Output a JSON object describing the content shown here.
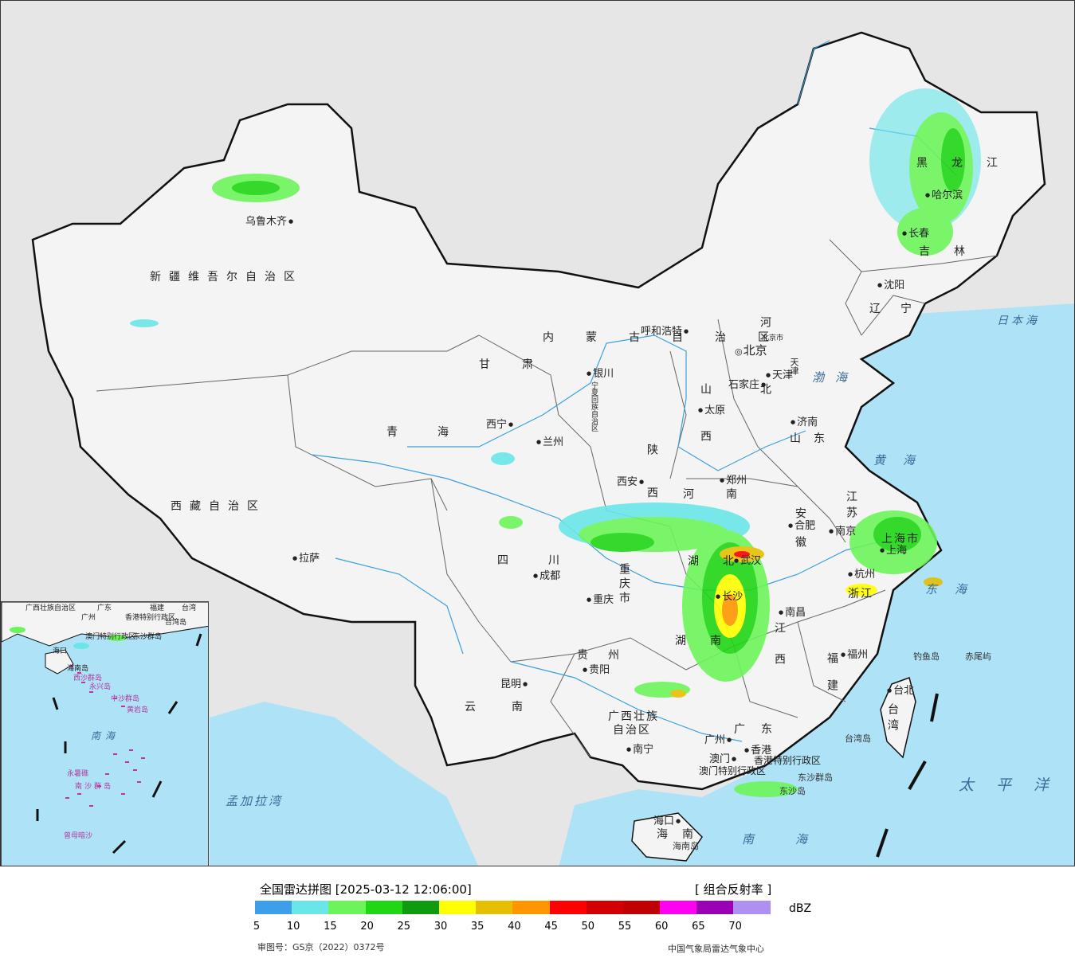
{
  "map": {
    "provinces": [
      {
        "name": "新疆维吾尔自治区"
      },
      {
        "name": "西藏自治区"
      },
      {
        "name": "青海"
      },
      {
        "name": "甘肃"
      },
      {
        "name": "四川"
      },
      {
        "name": "云南"
      },
      {
        "name": "贵州"
      },
      {
        "name": "广西壮族"
      },
      {
        "name": "自治区"
      },
      {
        "name": "广东"
      },
      {
        "name": "湖南"
      },
      {
        "name": "湖北"
      },
      {
        "name": "江西"
      },
      {
        "name": "福建"
      },
      {
        "name": "浙江"
      },
      {
        "name": "江苏"
      },
      {
        "name": "安徽"
      },
      {
        "name": "河南"
      },
      {
        "name": "山东"
      },
      {
        "name": "河北"
      },
      {
        "name": "山西"
      },
      {
        "name": "陕西"
      },
      {
        "name": "宁夏回族自治区"
      },
      {
        "name": "内蒙古自治区"
      },
      {
        "name": "黑龙江"
      },
      {
        "name": "吉林"
      },
      {
        "name": "辽宁"
      },
      {
        "name": "台湾"
      },
      {
        "name": "海南"
      },
      {
        "name": "重庆市"
      },
      {
        "name": "上海市"
      },
      {
        "name": "天津"
      },
      {
        "name": "北京市"
      }
    ],
    "cities": [
      {
        "name": "乌鲁木齐"
      },
      {
        "name": "拉萨"
      },
      {
        "name": "西宁"
      },
      {
        "name": "兰州"
      },
      {
        "name": "银川"
      },
      {
        "name": "呼和浩特"
      },
      {
        "name": "北京"
      },
      {
        "name": "天津"
      },
      {
        "name": "石家庄"
      },
      {
        "name": "太原"
      },
      {
        "name": "济南"
      },
      {
        "name": "郑州"
      },
      {
        "name": "西安"
      },
      {
        "name": "成都"
      },
      {
        "name": "重庆"
      },
      {
        "name": "武汉"
      },
      {
        "name": "合肥"
      },
      {
        "name": "南京"
      },
      {
        "name": "上海"
      },
      {
        "name": "杭州"
      },
      {
        "name": "南昌"
      },
      {
        "name": "长沙"
      },
      {
        "name": "福州"
      },
      {
        "name": "台北"
      },
      {
        "name": "贵阳"
      },
      {
        "name": "昆明"
      },
      {
        "name": "南宁"
      },
      {
        "name": "广州"
      },
      {
        "name": "澳门"
      },
      {
        "name": "香港"
      },
      {
        "name": "海口"
      },
      {
        "name": "沈阳"
      },
      {
        "name": "长春"
      },
      {
        "name": "哈尔滨"
      }
    ],
    "seas": [
      {
        "name": "日本海"
      },
      {
        "name": "渤海"
      },
      {
        "name": "黄海"
      },
      {
        "name": "东海"
      },
      {
        "name": "太平洋"
      },
      {
        "name": "南海"
      },
      {
        "name": "孟加拉湾"
      }
    ],
    "islands": [
      {
        "name": "钓鱼岛"
      },
      {
        "name": "赤尾屿"
      },
      {
        "name": "台湾岛"
      },
      {
        "name": "东沙群岛"
      },
      {
        "name": "东沙岛"
      },
      {
        "name": "海南岛"
      }
    ],
    "special_regions": [
      {
        "name": "香港特别行政区"
      },
      {
        "name": "澳门特别行政区"
      }
    ]
  },
  "inset": {
    "labels": [
      {
        "name": "广西壮族自治区"
      },
      {
        "name": "广东"
      },
      {
        "name": "福建"
      },
      {
        "name": "台湾"
      },
      {
        "name": "广州"
      },
      {
        "name": "香港特别行政区"
      },
      {
        "name": "澳门特别行政区"
      },
      {
        "name": "东沙群岛"
      },
      {
        "name": "台湾岛"
      },
      {
        "name": "海口"
      },
      {
        "name": "海南岛"
      },
      {
        "name": "西沙群岛"
      },
      {
        "name": "永兴岛"
      },
      {
        "name": "中沙群岛"
      },
      {
        "name": "黄岩岛"
      },
      {
        "name": "南海"
      },
      {
        "name": "永暑礁"
      },
      {
        "name": "南沙群岛"
      },
      {
        "name": "曾母暗沙"
      }
    ]
  },
  "legend": {
    "title": "全国雷达拼图 [2025-03-12 12:06:00]",
    "product": "[ 组合反射率 ]",
    "unit": "dBZ",
    "ticks": [
      "5",
      "10",
      "15",
      "20",
      "25",
      "30",
      "35",
      "40",
      "45",
      "50",
      "55",
      "60",
      "65",
      "70"
    ],
    "colors": [
      "#3d9eea",
      "#6ae6e8",
      "#6cf55a",
      "#20d615",
      "#109a10",
      "#ffff00",
      "#e6c000",
      "#ff9600",
      "#ff0000",
      "#d20000",
      "#c00000",
      "#ff00f0",
      "#9a00b4",
      "#ad90f0"
    ],
    "review_number": "审图号：GS京（2022）0372号",
    "source": "中国气象局雷达气象中心"
  },
  "colors": {
    "ocean": "#aee3f7",
    "land_china": "#f4f4f4",
    "land_outside": "#e6e6e6",
    "river": "#3aa0e0",
    "border": "#111111"
  }
}
